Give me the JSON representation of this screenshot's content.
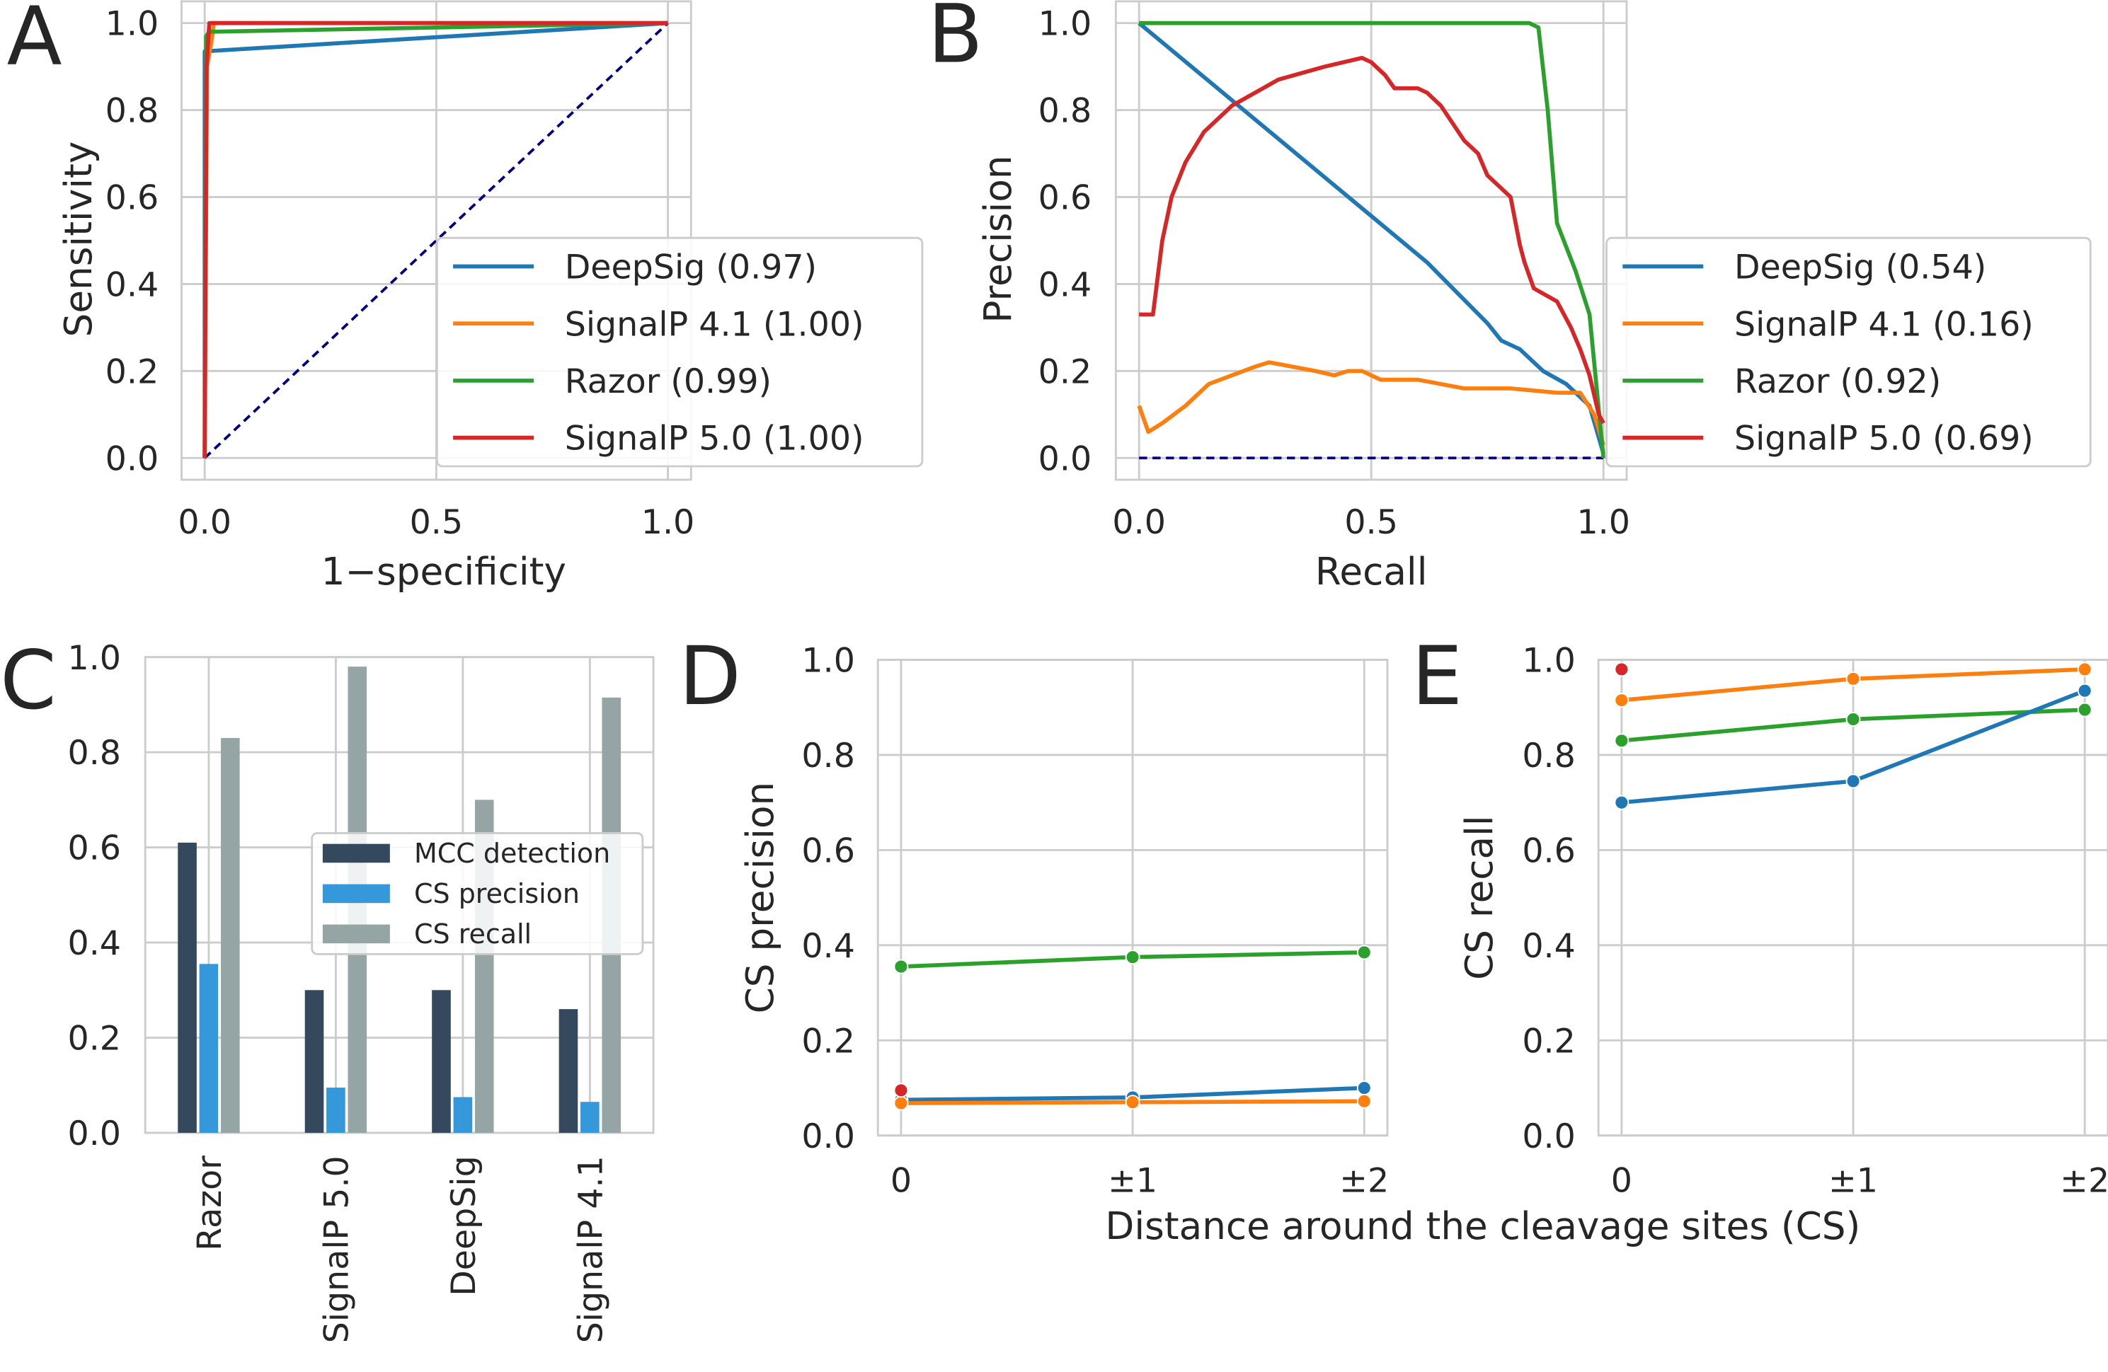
{
  "chart_data": [
    {
      "type": "line",
      "panel_label": "A",
      "xlabel": "1−specificity",
      "ylabel": "Sensitivity",
      "xlim": [
        -0.05,
        1.05
      ],
      "ylim": [
        -0.05,
        1.05
      ],
      "xticks": [
        {
          "value": 0,
          "label": "0.0"
        },
        0.5,
        {
          "value": 1,
          "label": "1.0"
        }
      ],
      "yticks": [
        {
          "value": 0,
          "label": "0.0"
        },
        0.2,
        0.4,
        0.6,
        0.8,
        {
          "value": 1,
          "label": "1.0"
        }
      ],
      "grid": true,
      "legend": "lower right",
      "reference_line": {
        "x": [
          0,
          1
        ],
        "values": [
          0,
          1
        ],
        "color": "#000080"
      },
      "series": [
        {
          "name": "DeepSig (0.97)",
          "color": "#1f77b4",
          "x": [
            0,
            0,
            1
          ],
          "values": [
            0,
            0.935,
            1
          ]
        },
        {
          "name": "SignalP 4.1 (1.00)",
          "color": "#ff7f0e",
          "x": [
            0,
            0.005,
            0.015,
            0.02,
            1
          ],
          "values": [
            0,
            0.9,
            0.96,
            1,
            1
          ]
        },
        {
          "name": "Razor (0.99)",
          "color": "#2ca02c",
          "x": [
            0,
            0.003,
            0.01,
            1
          ],
          "values": [
            0,
            0.97,
            0.98,
            1
          ]
        },
        {
          "name": "SignalP 5.0 (1.00)",
          "color": "#d62728",
          "x": [
            0,
            0.004,
            0.01,
            1
          ],
          "values": [
            0,
            0.9,
            1,
            1
          ]
        }
      ]
    },
    {
      "type": "line",
      "panel_label": "B",
      "xlabel": "Recall",
      "ylabel": "Precision",
      "xlim": [
        -0.05,
        1.05
      ],
      "ylim": [
        -0.05,
        1.05
      ],
      "xticks": [
        {
          "value": 0,
          "label": "0.0"
        },
        0.5,
        {
          "value": 1,
          "label": "1.0"
        }
      ],
      "yticks": [
        {
          "value": 0,
          "label": "0.0"
        },
        0.2,
        0.4,
        0.6,
        0.8,
        {
          "value": 1,
          "label": "1.0"
        }
      ],
      "grid": true,
      "legend": "lower right",
      "reference_line": {
        "x": [
          0,
          1
        ],
        "values": [
          0,
          0
        ],
        "color": "#000080"
      },
      "series": [
        {
          "name": "DeepSig (0.54)",
          "color": "#1f77b4",
          "x": [
            0,
            0.62,
            0.75,
            0.78,
            0.82,
            0.87,
            0.92,
            0.97,
            1
          ],
          "values": [
            1,
            0.45,
            0.31,
            0.27,
            0.25,
            0.2,
            0.17,
            0.12,
            0.01
          ]
        },
        {
          "name": "SignalP 4.1 (0.16)",
          "color": "#ff7f0e",
          "x": [
            0,
            0.02,
            0.05,
            0.1,
            0.15,
            0.2,
            0.25,
            0.28,
            0.33,
            0.38,
            0.42,
            0.45,
            0.48,
            0.52,
            0.6,
            0.7,
            0.8,
            0.9,
            0.95,
            0.98,
            1
          ],
          "values": [
            0.12,
            0.06,
            0.08,
            0.12,
            0.17,
            0.19,
            0.21,
            0.22,
            0.21,
            0.2,
            0.19,
            0.2,
            0.2,
            0.18,
            0.18,
            0.16,
            0.16,
            0.15,
            0.15,
            0.1,
            0.03
          ]
        },
        {
          "name": "Razor (0.92)",
          "color": "#2ca02c",
          "x": [
            0,
            0.84,
            0.86,
            0.88,
            0.9,
            0.94,
            0.97,
            1
          ],
          "values": [
            1,
            1,
            0.99,
            0.8,
            0.54,
            0.43,
            0.33,
            0
          ]
        },
        {
          "name": "SignalP 5.0 (0.69)",
          "color": "#d62728",
          "x": [
            0,
            0.03,
            0.05,
            0.07,
            0.1,
            0.14,
            0.2,
            0.3,
            0.4,
            0.48,
            0.5,
            0.53,
            0.55,
            0.6,
            0.62,
            0.65,
            0.7,
            0.73,
            0.75,
            0.8,
            0.82,
            0.83,
            0.85,
            0.9,
            0.93,
            0.95,
            0.97,
            0.99,
            1
          ],
          "values": [
            0.33,
            0.33,
            0.5,
            0.6,
            0.68,
            0.75,
            0.81,
            0.87,
            0.9,
            0.92,
            0.91,
            0.88,
            0.85,
            0.85,
            0.84,
            0.81,
            0.73,
            0.7,
            0.65,
            0.6,
            0.49,
            0.45,
            0.39,
            0.36,
            0.3,
            0.25,
            0.19,
            0.1,
            0.08
          ]
        }
      ]
    },
    {
      "type": "bar",
      "panel_label": "C",
      "categories": [
        "Razor",
        "SignalP 5.0",
        "DeepSig",
        "SignalP 4.1"
      ],
      "ylim": [
        0,
        1
      ],
      "yticks": [
        {
          "value": 0,
          "label": "0.0"
        },
        0.2,
        0.4,
        0.6,
        0.8,
        {
          "value": 1,
          "label": "1.0"
        }
      ],
      "grid": true,
      "legend": "center",
      "series": [
        {
          "name": "MCC detection",
          "color": "#34495e",
          "values": [
            0.61,
            0.3,
            0.3,
            0.26
          ]
        },
        {
          "name": "CS precision",
          "color": "#3498db",
          "values": [
            0.355,
            0.095,
            0.075,
            0.065
          ]
        },
        {
          "name": "CS recall",
          "color": "#95a5a6",
          "values": [
            0.83,
            0.98,
            0.7,
            0.915
          ]
        }
      ]
    },
    {
      "type": "line",
      "panel_label": "D",
      "ylabel": "CS precision",
      "xlabel": "Distance around the cleavage sites (CS)",
      "categories": [
        "0",
        "±1",
        "±2"
      ],
      "ylim": [
        0,
        1
      ],
      "yticks": [
        {
          "value": 0,
          "label": "0.0"
        },
        0.2,
        0.4,
        0.6,
        0.8,
        {
          "value": 1,
          "label": "1.0"
        }
      ],
      "grid": true,
      "markers": true,
      "series": [
        {
          "color": "#2ca02c",
          "values": [
            0.355,
            0.375,
            0.385
          ]
        },
        {
          "color": "#1f77b4",
          "values": [
            0.075,
            0.08,
            0.1
          ]
        },
        {
          "color": "#ff7f0e",
          "values": [
            0.068,
            0.07,
            0.072
          ]
        },
        {
          "color": "#d62728",
          "values": [
            0.095,
            null,
            null
          ]
        }
      ]
    },
    {
      "type": "line",
      "panel_label": "E",
      "ylabel": "CS recall",
      "categories": [
        "0",
        "±1",
        "±2"
      ],
      "ylim": [
        0,
        1
      ],
      "yticks": [
        {
          "value": 0,
          "label": "0.0"
        },
        0.2,
        0.4,
        0.6,
        0.8,
        {
          "value": 1,
          "label": "1.0"
        }
      ],
      "grid": true,
      "markers": true,
      "series": [
        {
          "color": "#ff7f0e",
          "values": [
            0.915,
            0.96,
            0.98
          ]
        },
        {
          "color": "#2ca02c",
          "values": [
            0.83,
            0.875,
            0.895
          ]
        },
        {
          "color": "#1f77b4",
          "values": [
            0.7,
            0.745,
            0.935
          ]
        },
        {
          "color": "#d62728",
          "values": [
            0.98,
            null,
            null
          ]
        }
      ]
    }
  ]
}
